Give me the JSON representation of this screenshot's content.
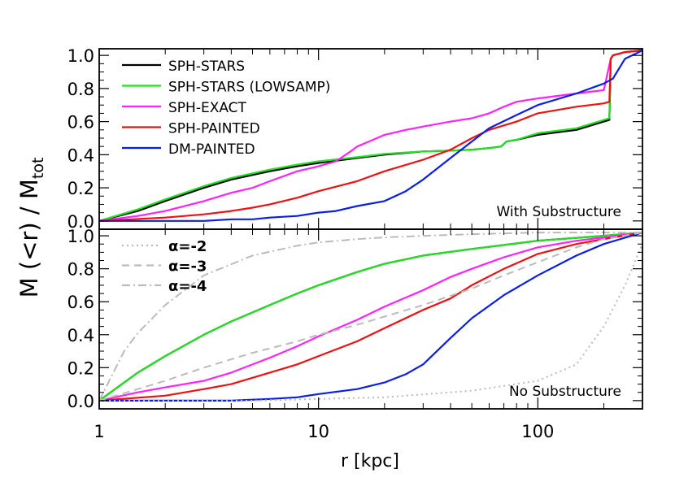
{
  "chart_data": {
    "type": "line",
    "xlabel": "r [kpc]",
    "ylabel": "M (<r) / M",
    "ylabel_subscript": "tot",
    "x_scale": "log",
    "xlim": [
      1,
      300
    ],
    "x_ticks": [
      1,
      10,
      100
    ],
    "x_tick_labels": [
      "1",
      "10",
      "100"
    ],
    "panels": [
      {
        "id": "top",
        "annotation": "With Substructure",
        "ylim": [
          -0.05,
          1.04
        ],
        "y_ticks": [
          0.0,
          0.2,
          0.4,
          0.6,
          0.8,
          1.0
        ],
        "y_tick_labels": [
          "0.0",
          "0.2",
          "0.4",
          "0.6",
          "0.8",
          "1.0"
        ],
        "legend_position": "top-left",
        "series": [
          {
            "name": "SPH-STARS",
            "color": "#000000",
            "style": "solid",
            "x": [
              1,
              1.5,
              2,
              3,
              4,
              6,
              8,
              10,
              15,
              20,
              30,
              40,
              50,
              60,
              68,
              72,
              80,
              100,
              150,
              200,
              212,
              215,
              220,
              250,
              300
            ],
            "y": [
              0.0,
              0.06,
              0.12,
              0.2,
              0.25,
              0.3,
              0.33,
              0.35,
              0.38,
              0.4,
              0.42,
              0.425,
              0.43,
              0.44,
              0.45,
              0.48,
              0.49,
              0.52,
              0.55,
              0.6,
              0.61,
              0.98,
              1.0,
              1.02,
              1.03
            ]
          },
          {
            "name": "SPH-STARS (LOWSAMP)",
            "color": "#22e022",
            "style": "solid",
            "x": [
              1,
              1.5,
              2,
              3,
              4,
              6,
              8,
              10,
              15,
              20,
              30,
              40,
              50,
              60,
              68,
              72,
              80,
              100,
              150,
              200,
              212,
              215,
              220,
              250,
              300
            ],
            "y": [
              0.0,
              0.07,
              0.13,
              0.21,
              0.26,
              0.31,
              0.34,
              0.36,
              0.385,
              0.405,
              0.42,
              0.425,
              0.43,
              0.44,
              0.45,
              0.48,
              0.49,
              0.53,
              0.56,
              0.61,
              0.62,
              0.98,
              1.0,
              1.02,
              1.03
            ]
          },
          {
            "name": "SPH-EXACT",
            "color": "#ff22ff",
            "style": "solid",
            "x": [
              1,
              1.5,
              2,
              3,
              4,
              5,
              6,
              8,
              10,
              12,
              14,
              15,
              17,
              20,
              25,
              30,
              40,
              50,
              60,
              70,
              80,
              100,
              150,
              200,
              215,
              220,
              250,
              300
            ],
            "y": [
              0.0,
              0.03,
              0.06,
              0.12,
              0.17,
              0.2,
              0.24,
              0.3,
              0.33,
              0.36,
              0.42,
              0.45,
              0.48,
              0.52,
              0.55,
              0.57,
              0.6,
              0.62,
              0.65,
              0.69,
              0.72,
              0.74,
              0.77,
              0.79,
              0.98,
              1.0,
              1.02,
              1.03
            ]
          },
          {
            "name": "SPH-PAINTED",
            "color": "#ee1111",
            "style": "solid",
            "x": [
              1,
              2,
              3,
              4,
              5,
              6,
              8,
              10,
              15,
              20,
              30,
              40,
              50,
              60,
              80,
              100,
              150,
              200,
              212,
              215,
              220,
              250,
              300
            ],
            "y": [
              0.0,
              0.02,
              0.04,
              0.06,
              0.08,
              0.1,
              0.14,
              0.18,
              0.24,
              0.3,
              0.37,
              0.43,
              0.5,
              0.55,
              0.6,
              0.65,
              0.69,
              0.71,
              0.72,
              0.98,
              1.0,
              1.02,
              1.03
            ]
          },
          {
            "name": "DM-PAINTED",
            "color": "#0a1ee6",
            "style": "solid",
            "x": [
              1,
              2,
              3,
              4,
              5,
              6,
              8,
              10,
              12,
              15,
              20,
              25,
              30,
              40,
              50,
              60,
              80,
              100,
              150,
              200,
              220,
              250,
              300
            ],
            "y": [
              0.0,
              0.0,
              0.0,
              0.01,
              0.01,
              0.02,
              0.03,
              0.05,
              0.06,
              0.09,
              0.12,
              0.18,
              0.25,
              0.38,
              0.48,
              0.56,
              0.64,
              0.7,
              0.77,
              0.83,
              0.86,
              0.98,
              1.03
            ]
          }
        ]
      },
      {
        "id": "bottom",
        "annotation": "No Substructure",
        "ylim": [
          -0.05,
          1.04
        ],
        "y_ticks": [
          0.0,
          0.2,
          0.4,
          0.6,
          0.8,
          1.0
        ],
        "y_tick_labels": [
          "0.0",
          "0.2",
          "0.4",
          "0.6",
          "0.8",
          "1.0"
        ],
        "legend_position": "top-left",
        "series": [
          {
            "name": "SPH-STARS",
            "color": "#000000",
            "style": "solid",
            "legend": false,
            "x": [
              1,
              1.5,
              2,
              3,
              4,
              6,
              8,
              10,
              15,
              20,
              30,
              50,
              100,
              200,
              300
            ],
            "y": [
              0.0,
              0.17,
              0.27,
              0.4,
              0.48,
              0.58,
              0.65,
              0.7,
              0.78,
              0.83,
              0.88,
              0.92,
              0.97,
              1.0,
              1.02
            ]
          },
          {
            "name": "SPH-STARS (LOWSAMP)",
            "color": "#22e022",
            "style": "solid",
            "legend": false,
            "x": [
              1,
              1.5,
              2,
              3,
              4,
              6,
              8,
              10,
              15,
              20,
              30,
              50,
              100,
              200,
              300
            ],
            "y": [
              0.0,
              0.17,
              0.27,
              0.4,
              0.48,
              0.58,
              0.65,
              0.7,
              0.78,
              0.83,
              0.88,
              0.92,
              0.97,
              1.0,
              1.02
            ]
          },
          {
            "name": "SPH-EXACT",
            "color": "#ff22ff",
            "style": "solid",
            "legend": false,
            "x": [
              1,
              1.5,
              2,
              3,
              4,
              6,
              8,
              10,
              15,
              20,
              30,
              40,
              50,
              70,
              100,
              150,
              200,
              300
            ],
            "y": [
              0.0,
              0.05,
              0.08,
              0.12,
              0.17,
              0.26,
              0.33,
              0.39,
              0.49,
              0.57,
              0.67,
              0.75,
              0.8,
              0.87,
              0.93,
              0.97,
              0.99,
              1.02
            ]
          },
          {
            "name": "SPH-PAINTED",
            "color": "#ee1111",
            "style": "solid",
            "legend": false,
            "x": [
              1,
              2,
              3,
              4,
              6,
              8,
              10,
              15,
              20,
              30,
              40,
              50,
              70,
              100,
              150,
              200,
              300
            ],
            "y": [
              0.0,
              0.03,
              0.07,
              0.1,
              0.17,
              0.22,
              0.27,
              0.36,
              0.44,
              0.55,
              0.62,
              0.7,
              0.8,
              0.89,
              0.95,
              0.98,
              1.02
            ]
          },
          {
            "name": "DM-PAINTED",
            "color": "#0a1ee6",
            "style": "solid",
            "legend": false,
            "x": [
              1,
              2,
              3,
              4,
              6,
              8,
              10,
              15,
              20,
              25,
              30,
              40,
              50,
              70,
              100,
              150,
              200,
              300
            ],
            "y": [
              0.0,
              0.0,
              0.0,
              0.0,
              0.01,
              0.02,
              0.04,
              0.07,
              0.11,
              0.16,
              0.22,
              0.38,
              0.5,
              0.64,
              0.76,
              0.88,
              0.95,
              1.02
            ]
          },
          {
            "name": "α=-2",
            "color": "#bbbbbb",
            "style": "dotted",
            "x": [
              1,
              2,
              5,
              10,
              20,
              50,
              100,
              150,
              200,
              250,
              300
            ],
            "y": [
              0.0,
              0.0,
              0.0,
              0.01,
              0.02,
              0.06,
              0.12,
              0.22,
              0.45,
              0.7,
              0.95
            ]
          },
          {
            "name": "α=-3",
            "color": "#bbbbbb",
            "style": "dashed",
            "x": [
              1,
              1.5,
              2,
              3,
              5,
              8,
              10,
              15,
              20,
              30,
              50,
              70,
              100,
              150,
              200,
              300
            ],
            "y": [
              0.0,
              0.07,
              0.12,
              0.2,
              0.29,
              0.36,
              0.4,
              0.46,
              0.51,
              0.58,
              0.68,
              0.76,
              0.84,
              0.93,
              0.98,
              1.02
            ]
          },
          {
            "name": "α=-4",
            "color": "#bbbbbb",
            "style": "dashdot",
            "x": [
              1,
              1.3,
              1.5,
              2,
              3,
              5,
              8,
              10,
              15,
              20,
              30,
              50,
              100,
              200,
              300
            ],
            "y": [
              0.0,
              0.3,
              0.41,
              0.58,
              0.76,
              0.88,
              0.94,
              0.96,
              0.98,
              0.99,
              1.0,
              1.01,
              1.02,
              1.02,
              1.02
            ]
          }
        ]
      }
    ]
  }
}
